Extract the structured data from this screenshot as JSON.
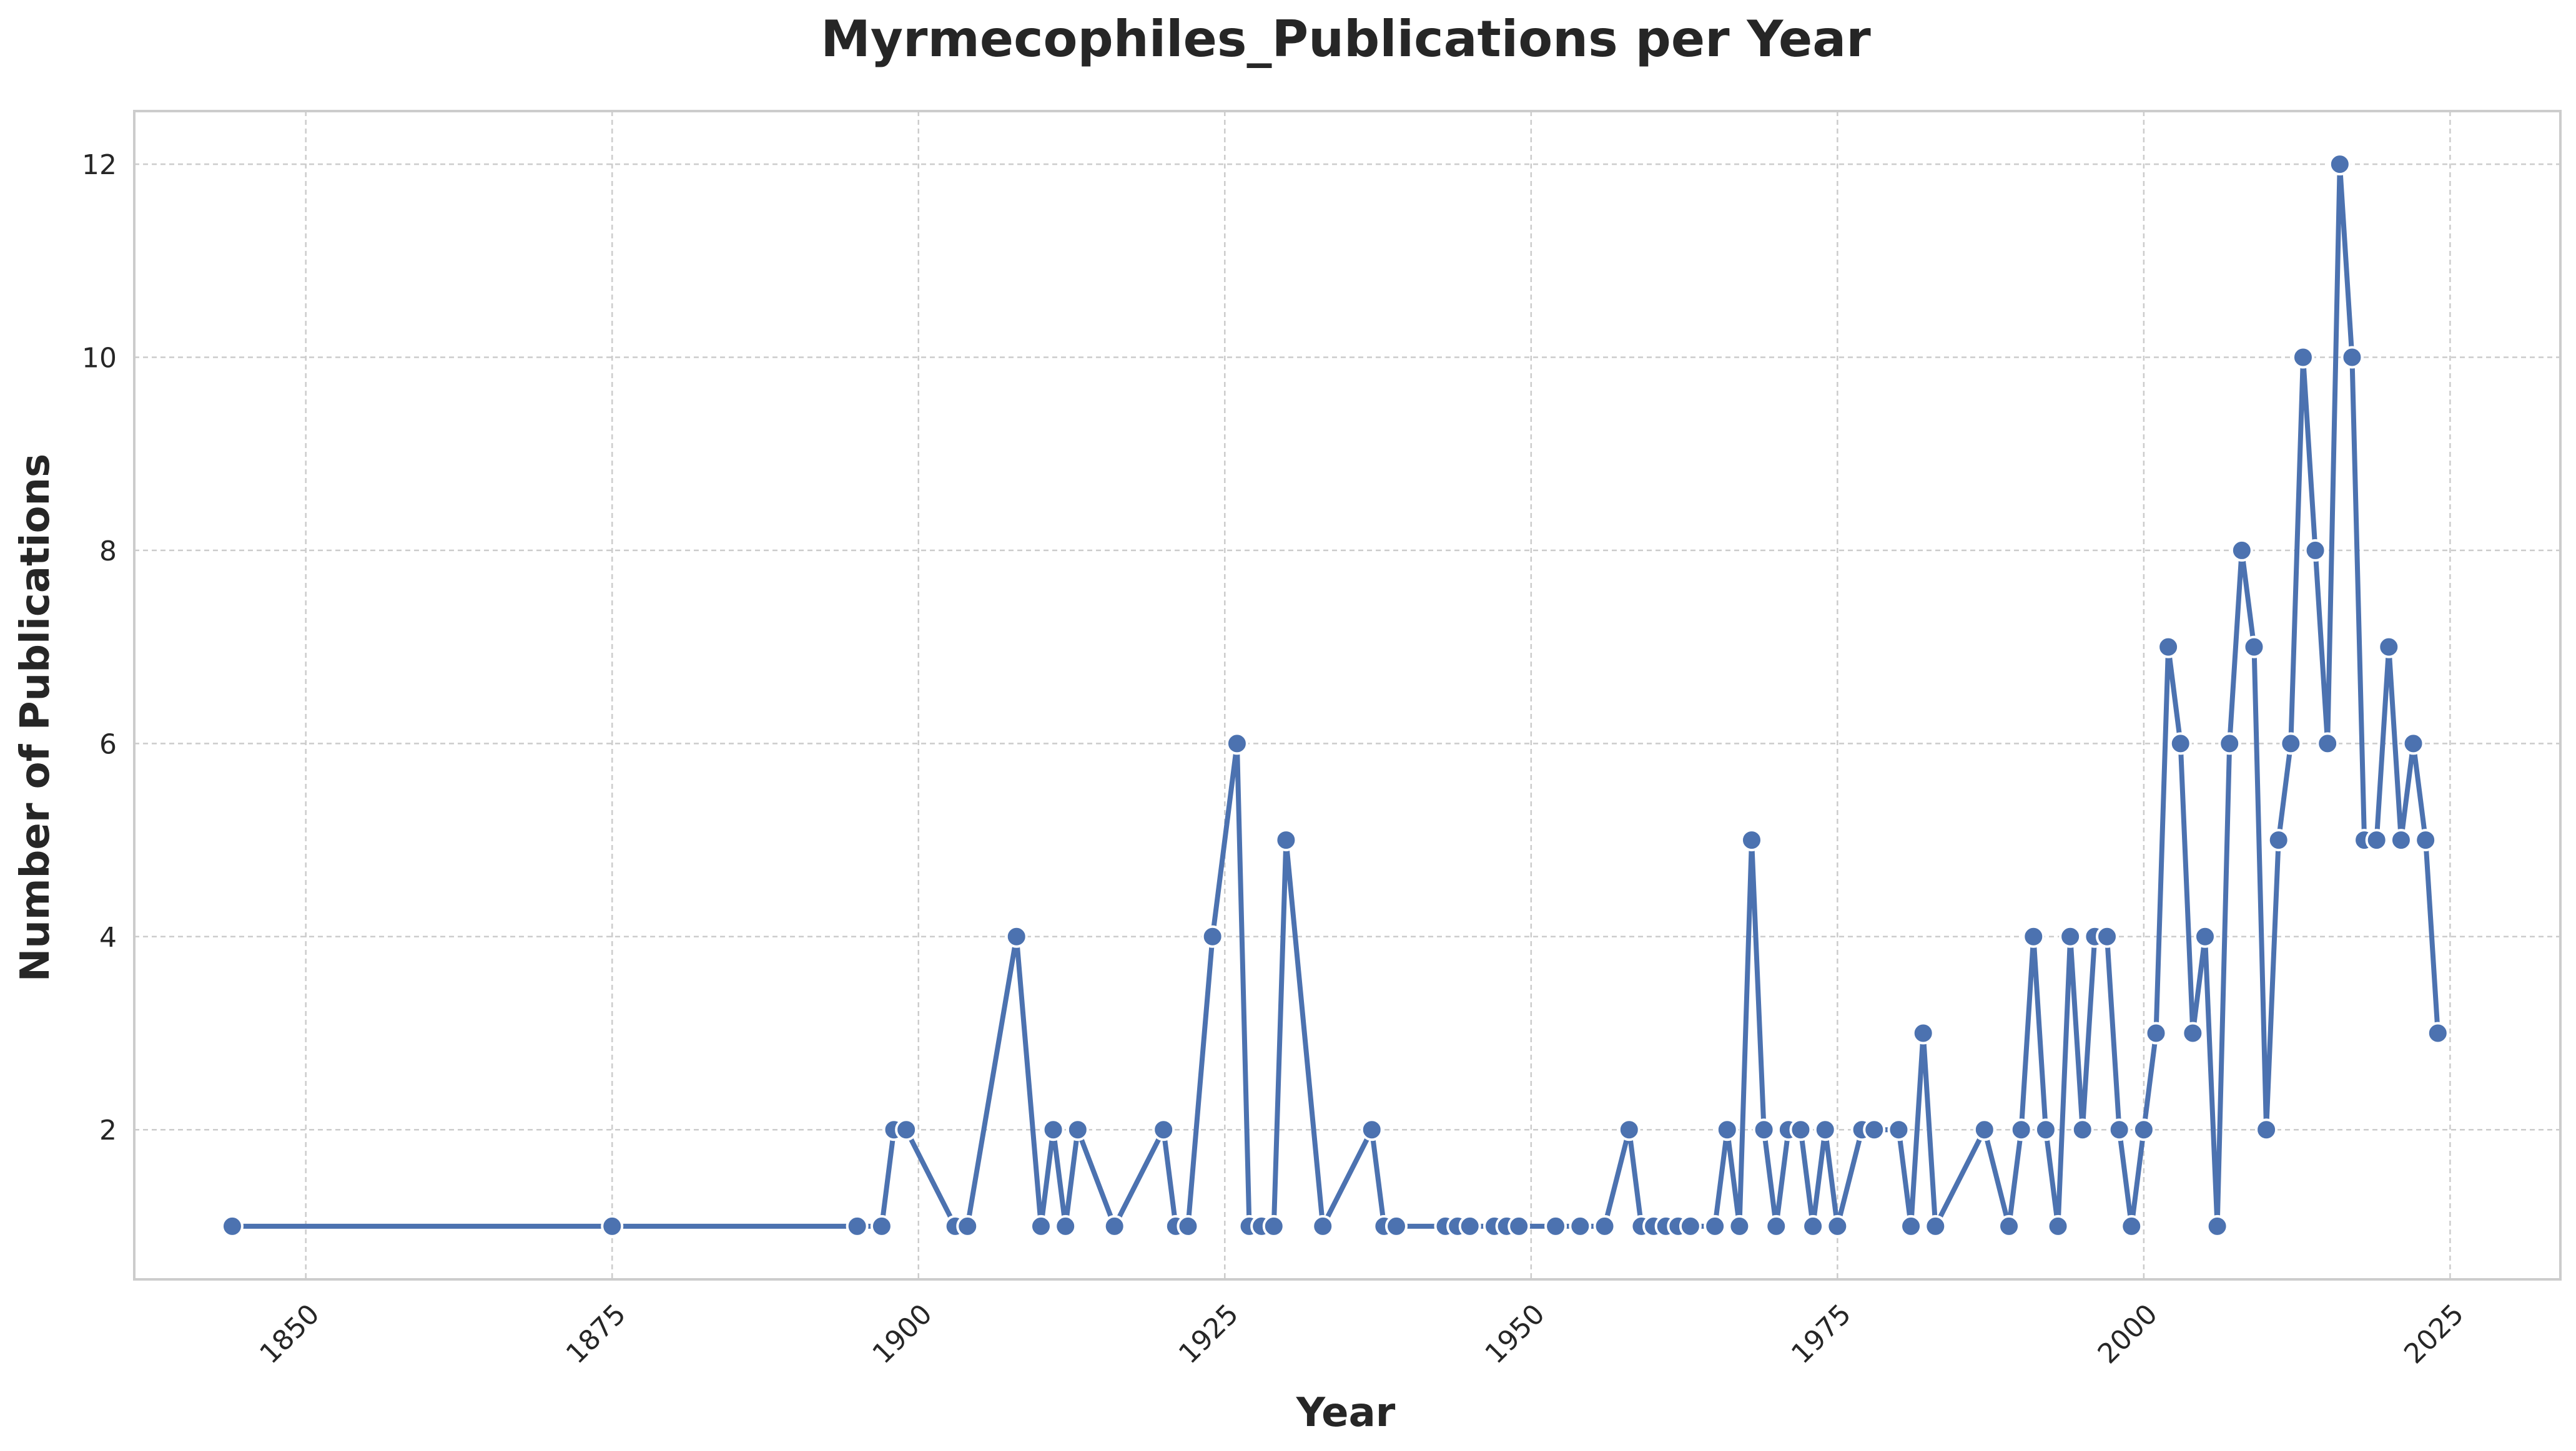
{
  "chart_data": {
    "type": "line",
    "title": "Myrmecophiles_Publications per Year",
    "xlabel": "Year",
    "ylabel": "Number of Publications",
    "xlim": [
      1836,
      2034
    ],
    "ylim": [
      0.45,
      12.55
    ],
    "xticks": [
      1850,
      1875,
      1900,
      1925,
      1950,
      1975,
      2000,
      2025
    ],
    "yticks": [
      2,
      4,
      6,
      8,
      10,
      12
    ],
    "grid": true,
    "legend": "none",
    "color": "#4c72b0",
    "series": [
      {
        "name": "Publications",
        "points": [
          [
            1844,
            1
          ],
          [
            1875,
            1
          ],
          [
            1895,
            1
          ],
          [
            1897,
            1
          ],
          [
            1898,
            2
          ],
          [
            1899,
            2
          ],
          [
            1903,
            1
          ],
          [
            1904,
            1
          ],
          [
            1908,
            4
          ],
          [
            1910,
            1
          ],
          [
            1911,
            2
          ],
          [
            1912,
            1
          ],
          [
            1913,
            2
          ],
          [
            1916,
            1
          ],
          [
            1920,
            2
          ],
          [
            1921,
            1
          ],
          [
            1922,
            1
          ],
          [
            1924,
            4
          ],
          [
            1926,
            6
          ],
          [
            1927,
            1
          ],
          [
            1928,
            1
          ],
          [
            1929,
            1
          ],
          [
            1930,
            5
          ],
          [
            1933,
            1
          ],
          [
            1937,
            2
          ],
          [
            1938,
            1
          ],
          [
            1939,
            1
          ],
          [
            1943,
            1
          ],
          [
            1944,
            1
          ],
          [
            1945,
            1
          ],
          [
            1947,
            1
          ],
          [
            1948,
            1
          ],
          [
            1949,
            1
          ],
          [
            1952,
            1
          ],
          [
            1954,
            1
          ],
          [
            1956,
            1
          ],
          [
            1958,
            2
          ],
          [
            1959,
            1
          ],
          [
            1960,
            1
          ],
          [
            1961,
            1
          ],
          [
            1962,
            1
          ],
          [
            1963,
            1
          ],
          [
            1965,
            1
          ],
          [
            1966,
            2
          ],
          [
            1967,
            1
          ],
          [
            1968,
            5
          ],
          [
            1969,
            2
          ],
          [
            1970,
            1
          ],
          [
            1971,
            2
          ],
          [
            1972,
            2
          ],
          [
            1973,
            1
          ],
          [
            1974,
            2
          ],
          [
            1975,
            1
          ],
          [
            1977,
            2
          ],
          [
            1978,
            2
          ],
          [
            1980,
            2
          ],
          [
            1981,
            1
          ],
          [
            1982,
            3
          ],
          [
            1983,
            1
          ],
          [
            1987,
            2
          ],
          [
            1989,
            1
          ],
          [
            1990,
            2
          ],
          [
            1991,
            4
          ],
          [
            1992,
            2
          ],
          [
            1993,
            1
          ],
          [
            1994,
            4
          ],
          [
            1995,
            2
          ],
          [
            1996,
            4
          ],
          [
            1997,
            4
          ],
          [
            1998,
            2
          ],
          [
            1999,
            1
          ],
          [
            2000,
            2
          ],
          [
            2001,
            3
          ],
          [
            2002,
            7
          ],
          [
            2003,
            6
          ],
          [
            2004,
            3
          ],
          [
            2005,
            4
          ],
          [
            2006,
            1
          ],
          [
            2007,
            6
          ],
          [
            2008,
            8
          ],
          [
            2009,
            7
          ],
          [
            2010,
            2
          ],
          [
            2011,
            5
          ],
          [
            2012,
            6
          ],
          [
            2013,
            10
          ],
          [
            2014,
            8
          ],
          [
            2015,
            6
          ],
          [
            2016,
            12
          ],
          [
            2017,
            10
          ],
          [
            2018,
            5
          ],
          [
            2019,
            5
          ],
          [
            2020,
            7
          ],
          [
            2021,
            5
          ],
          [
            2022,
            6
          ],
          [
            2023,
            5
          ],
          [
            2024,
            3
          ]
        ]
      }
    ]
  }
}
